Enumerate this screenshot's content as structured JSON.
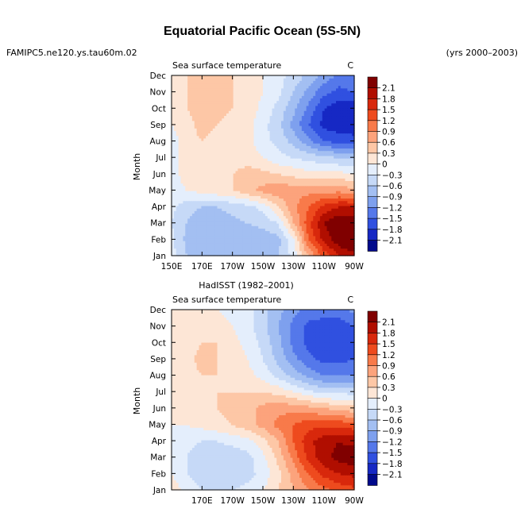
{
  "header": {
    "title": "Equatorial Pacific Ocean (5S-5N)",
    "case_name": "FAMIPC5.ne120.ys.tau60m.02",
    "years": "(yrs 2000–2003)"
  },
  "colorbar": {
    "levels": [
      "2.1",
      "1.8",
      "1.5",
      "1.2",
      "0.9",
      "0.6",
      "0.3",
      "0",
      "−0.3",
      "−0.6",
      "−0.9",
      "−1.2",
      "−1.5",
      "−1.8",
      "−2.1"
    ],
    "colors": [
      "#800000",
      "#b00e00",
      "#d8280c",
      "#ee4b1e",
      "#f87a4a",
      "#fca37c",
      "#fdc7a6",
      "#fde6d6",
      "#e4eefc",
      "#c6d9f7",
      "#a3bff2",
      "#7ea0ee",
      "#5578ea",
      "#3050e0",
      "#1628c4",
      "#000a8c"
    ]
  },
  "chart_data": [
    {
      "type": "heatmap",
      "subtitle": "",
      "left_label": "Sea surface temperature",
      "units": "C",
      "ylabel": "Month",
      "x_ticks": [
        "150E",
        "170E",
        "170W",
        "150W",
        "130W",
        "110W",
        "90W"
      ],
      "y_ticks": [
        "Jan",
        "Feb",
        "Mar",
        "Apr",
        "May",
        "Jun",
        "Jul",
        "Aug",
        "Sep",
        "Oct",
        "Nov",
        "Dec"
      ],
      "x_range": [
        "150E",
        "90W"
      ],
      "lons": [
        "150E",
        "160E",
        "170E",
        "180",
        "170W",
        "160W",
        "150W",
        "140W",
        "130W",
        "120W",
        "110W",
        "100W",
        "90W"
      ],
      "values": [
        [
          -0.2,
          -0.6,
          -0.8,
          -0.8,
          -0.8,
          -0.8,
          -0.7,
          -0.6,
          -0.2,
          0.6,
          1.3,
          1.8,
          2.0
        ],
        [
          -0.2,
          -0.7,
          -0.9,
          -0.8,
          -0.8,
          -0.8,
          -0.8,
          -0.7,
          -0.1,
          1.2,
          1.9,
          2.3,
          2.5
        ],
        [
          -0.3,
          -0.6,
          -0.8,
          -0.8,
          -0.7,
          -0.6,
          -0.5,
          -0.3,
          0.6,
          1.4,
          2.1,
          2.4,
          2.4
        ],
        [
          -0.2,
          -0.5,
          -0.6,
          -0.6,
          -0.5,
          -0.4,
          -0.2,
          0.3,
          0.8,
          1.2,
          1.6,
          1.8,
          1.8
        ],
        [
          -0.1,
          0.0,
          0.1,
          0.2,
          0.3,
          0.5,
          0.7,
          0.8,
          0.8,
          0.8,
          0.8,
          0.8,
          0.7
        ],
        [
          -0.1,
          0.1,
          0.2,
          0.3,
          0.3,
          0.4,
          0.4,
          0.3,
          0.2,
          0.1,
          0.1,
          0.1,
          0.0
        ],
        [
          -0.2,
          0.2,
          0.3,
          0.2,
          0.2,
          0.2,
          0.0,
          -0.2,
          -0.3,
          -0.4,
          -0.5,
          -0.6,
          -0.6
        ],
        [
          -0.2,
          0.2,
          0.3,
          0.2,
          0.2,
          0.1,
          -0.2,
          -0.4,
          -0.7,
          -1.1,
          -1.5,
          -1.6,
          -1.6
        ],
        [
          0.0,
          0.2,
          0.4,
          0.3,
          0.2,
          0.1,
          -0.2,
          -0.5,
          -1.0,
          -1.5,
          -1.9,
          -2.0,
          -2.1
        ],
        [
          0.0,
          0.3,
          0.4,
          0.4,
          0.3,
          0.2,
          -0.1,
          -0.4,
          -0.8,
          -1.3,
          -1.8,
          -2.0,
          -2.0
        ],
        [
          0.1,
          0.3,
          0.4,
          0.4,
          0.3,
          0.2,
          0.0,
          -0.2,
          -0.6,
          -1.0,
          -1.4,
          -1.6,
          -1.5
        ],
        [
          0.1,
          0.3,
          0.4,
          0.4,
          0.3,
          0.2,
          0.0,
          -0.2,
          -0.4,
          -0.7,
          -1.0,
          -1.3,
          -1.3
        ]
      ]
    },
    {
      "type": "heatmap",
      "subtitle": "HadISST (1982–2001)",
      "left_label": "Sea surface temperature",
      "units": "C",
      "ylabel": "Month",
      "x_ticks": [
        "170E",
        "170W",
        "150W",
        "130W",
        "110W",
        "90W"
      ],
      "y_ticks": [
        "Jan",
        "Feb",
        "Mar",
        "Apr",
        "May",
        "Jun",
        "Jul",
        "Aug",
        "Sep",
        "Oct",
        "Nov",
        "Dec"
      ],
      "x_range": [
        "150E",
        "90W"
      ],
      "lons": [
        "150E",
        "160E",
        "170E",
        "180",
        "170W",
        "160W",
        "150W",
        "140W",
        "130W",
        "120W",
        "110W",
        "100W",
        "90W"
      ],
      "values": [
        [
          0.2,
          -0.1,
          -0.3,
          -0.3,
          -0.3,
          -0.2,
          0.0,
          0.3,
          0.6,
          0.9,
          1.1,
          1.3,
          1.4
        ],
        [
          0.0,
          -0.3,
          -0.5,
          -0.6,
          -0.5,
          -0.4,
          -0.2,
          0.2,
          0.7,
          1.2,
          1.6,
          1.8,
          1.9
        ],
        [
          0.0,
          -0.3,
          -0.5,
          -0.6,
          -0.5,
          -0.4,
          -0.1,
          0.4,
          1.0,
          1.6,
          2.0,
          2.2,
          2.3
        ],
        [
          0.0,
          -0.2,
          -0.3,
          -0.3,
          -0.2,
          -0.1,
          0.2,
          0.6,
          1.2,
          1.7,
          2.0,
          2.1,
          2.0
        ],
        [
          0.0,
          0.0,
          0.1,
          0.2,
          0.3,
          0.5,
          0.7,
          1.0,
          1.2,
          1.4,
          1.4,
          1.4,
          1.3
        ],
        [
          0.1,
          0.1,
          0.2,
          0.3,
          0.4,
          0.5,
          0.7,
          0.8,
          0.8,
          0.7,
          0.6,
          0.5,
          0.4
        ],
        [
          0.1,
          0.2,
          0.2,
          0.3,
          0.3,
          0.3,
          0.3,
          0.2,
          0.0,
          -0.2,
          -0.4,
          -0.4,
          -0.4
        ],
        [
          0.1,
          0.2,
          0.3,
          0.3,
          0.2,
          0.1,
          -0.1,
          -0.4,
          -0.7,
          -1.0,
          -1.2,
          -1.2,
          -1.2
        ],
        [
          0.1,
          0.2,
          0.4,
          0.3,
          0.2,
          0.0,
          -0.3,
          -0.7,
          -1.1,
          -1.4,
          -1.6,
          -1.6,
          -1.5
        ],
        [
          0.1,
          0.2,
          0.3,
          0.3,
          0.1,
          -0.1,
          -0.4,
          -0.8,
          -1.3,
          -1.6,
          -1.8,
          -1.8,
          -1.6
        ],
        [
          0.1,
          0.2,
          0.2,
          0.1,
          0.0,
          -0.2,
          -0.5,
          -0.9,
          -1.3,
          -1.6,
          -1.7,
          -1.7,
          -1.5
        ],
        [
          0.0,
          0.1,
          0.1,
          0.0,
          -0.1,
          -0.2,
          -0.5,
          -0.8,
          -1.1,
          -1.3,
          -1.3,
          -1.3,
          -1.1
        ]
      ]
    }
  ]
}
